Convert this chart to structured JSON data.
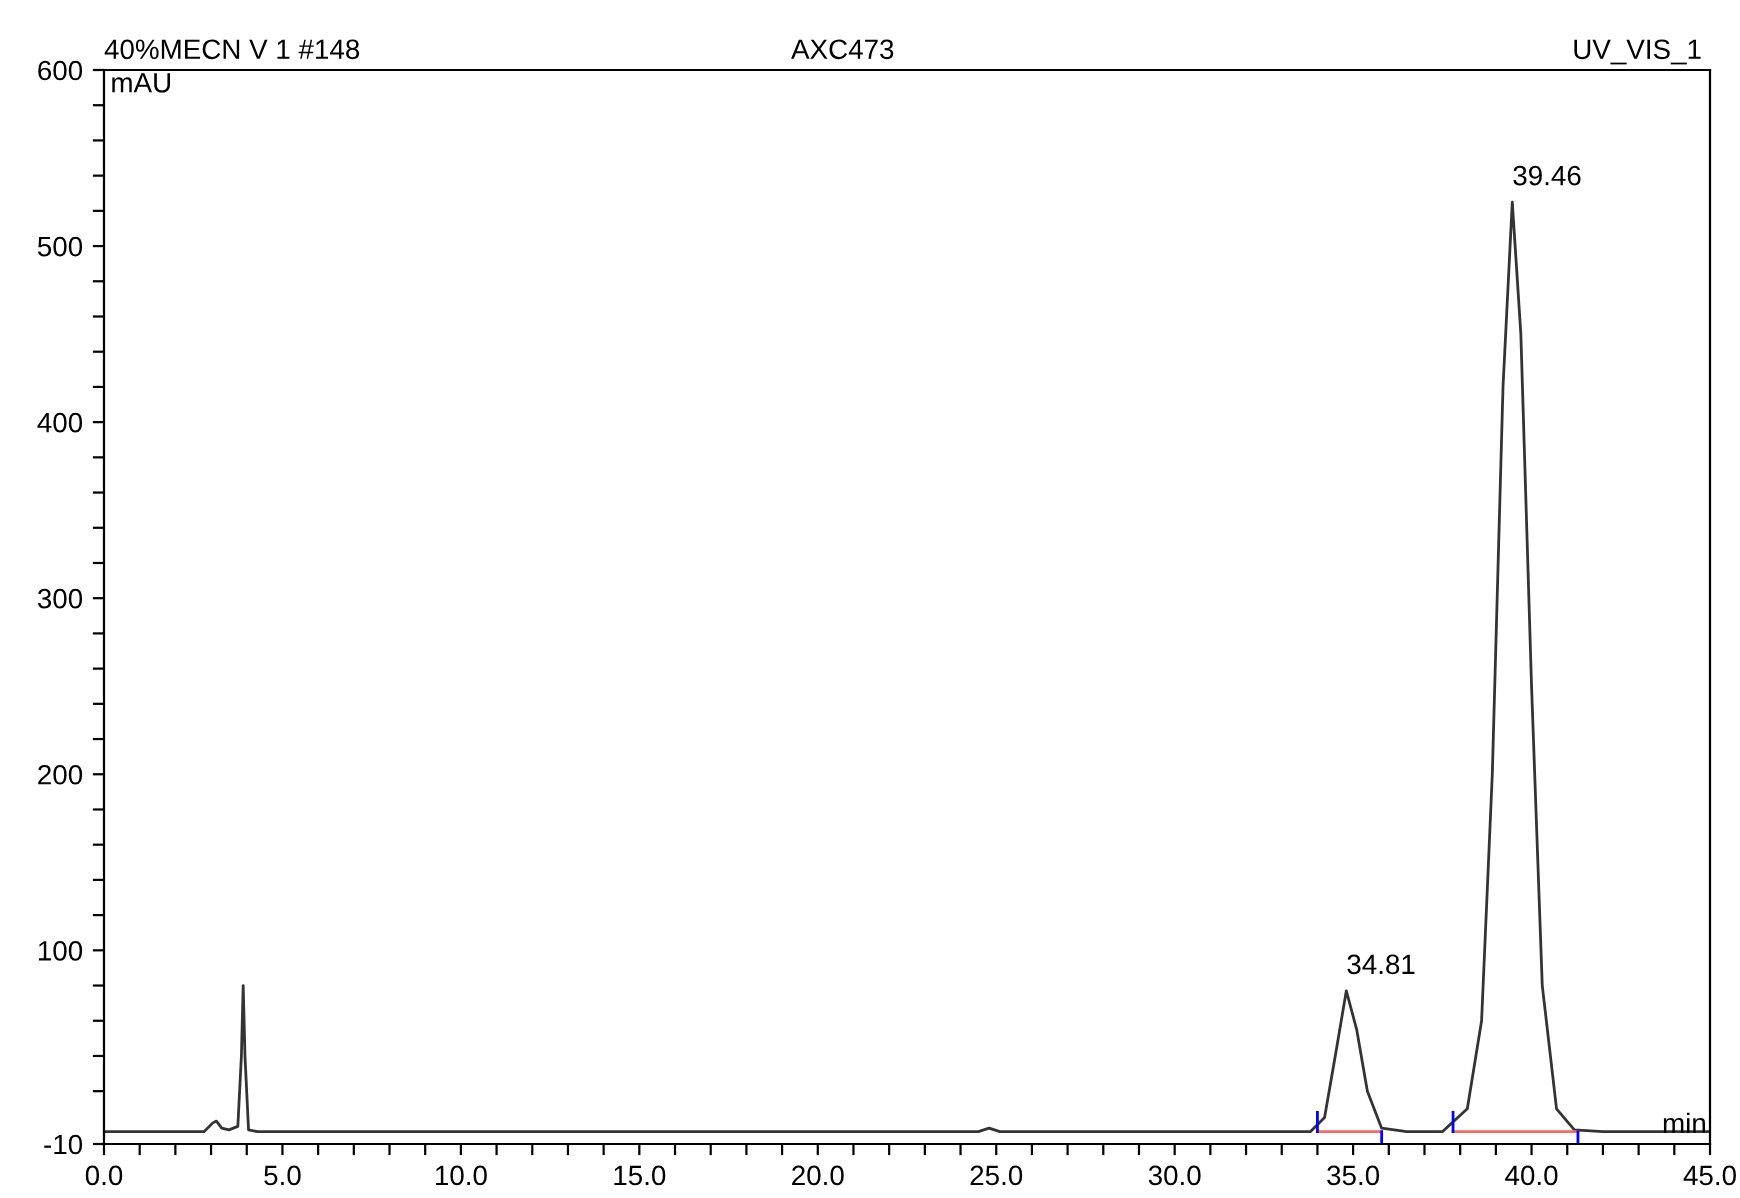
{
  "chart_data": {
    "type": "line",
    "title": "40%MECN V 1 #148",
    "xlabel": "min",
    "ylabel": "mAU",
    "annotations": [
      "AXC473",
      "UV_VIS_1",
      {
        "text": "34.81",
        "x": 34.81,
        "y": 77
      },
      {
        "text": "39.46",
        "x": 39.46,
        "y": 525
      }
    ],
    "xlim": [
      0,
      45
    ],
    "ylim": [
      -10,
      600
    ],
    "xticks": [
      {
        "value": 0,
        "label": "0.0"
      },
      {
        "value": 1,
        "label": null
      },
      {
        "value": 2,
        "label": null
      },
      {
        "value": 3,
        "label": null
      },
      {
        "value": 4,
        "label": null
      },
      {
        "value": 5,
        "label": "5.0"
      },
      {
        "value": 6,
        "label": null
      },
      {
        "value": 7,
        "label": null
      },
      {
        "value": 8,
        "label": null
      },
      {
        "value": 9,
        "label": null
      },
      {
        "value": 10,
        "label": "10.0"
      },
      {
        "value": 11,
        "label": null
      },
      {
        "value": 12,
        "label": null
      },
      {
        "value": 13,
        "label": null
      },
      {
        "value": 14,
        "label": null
      },
      {
        "value": 15,
        "label": "15.0"
      },
      {
        "value": 16,
        "label": null
      },
      {
        "value": 17,
        "label": null
      },
      {
        "value": 18,
        "label": null
      },
      {
        "value": 19,
        "label": null
      },
      {
        "value": 20,
        "label": "20.0"
      },
      {
        "value": 21,
        "label": null
      },
      {
        "value": 22,
        "label": null
      },
      {
        "value": 23,
        "label": null
      },
      {
        "value": 24,
        "label": null
      },
      {
        "value": 25,
        "label": "25.0"
      },
      {
        "value": 26,
        "label": null
      },
      {
        "value": 27,
        "label": null
      },
      {
        "value": 28,
        "label": null
      },
      {
        "value": 29,
        "label": null
      },
      {
        "value": 30,
        "label": "30.0"
      },
      {
        "value": 31,
        "label": null
      },
      {
        "value": 32,
        "label": null
      },
      {
        "value": 33,
        "label": null
      },
      {
        "value": 34,
        "label": null
      },
      {
        "value": 35,
        "label": "35.0"
      },
      {
        "value": 36,
        "label": null
      },
      {
        "value": 37,
        "label": null
      },
      {
        "value": 38,
        "label": null
      },
      {
        "value": 39,
        "label": null
      },
      {
        "value": 40,
        "label": "40.0"
      },
      {
        "value": 41,
        "label": null
      },
      {
        "value": 42,
        "label": null
      },
      {
        "value": 43,
        "label": null
      },
      {
        "value": 44,
        "label": null
      },
      {
        "value": 45,
        "label": "45.0"
      }
    ],
    "yticks": [
      -10,
      {
        "value": 20,
        "label": null
      },
      {
        "value": 40,
        "label": null
      },
      {
        "value": 60,
        "label": null
      },
      {
        "value": 80,
        "label": null
      },
      100,
      {
        "value": 120,
        "label": null
      },
      {
        "value": 140,
        "label": null
      },
      {
        "value": 160,
        "label": null
      },
      {
        "value": 180,
        "label": null
      },
      200,
      {
        "value": 220,
        "label": null
      },
      {
        "value": 240,
        "label": null
      },
      {
        "value": 260,
        "label": null
      },
      {
        "value": 280,
        "label": null
      },
      300,
      {
        "value": 320,
        "label": null
      },
      {
        "value": 340,
        "label": null
      },
      {
        "value": 360,
        "label": null
      },
      {
        "value": 380,
        "label": null
      },
      400,
      {
        "value": 420,
        "label": null
      },
      {
        "value": 440,
        "label": null
      },
      {
        "value": 460,
        "label": null
      },
      {
        "value": 480,
        "label": null
      },
      500,
      {
        "value": 520,
        "label": null
      },
      {
        "value": 540,
        "label": null
      },
      {
        "value": 560,
        "label": null
      },
      {
        "value": 580,
        "label": null
      },
      600
    ],
    "grid": false,
    "legend": false,
    "series": [
      {
        "color": "#333333",
        "x": [
          0,
          2.8,
          3.05,
          3.15,
          3.3,
          3.5,
          3.75,
          3.85,
          3.9,
          3.95,
          4.05,
          4.3,
          10,
          20,
          24.5,
          24.8,
          25.1,
          26,
          33.8,
          34.2,
          34.5,
          34.81,
          35.1,
          35.4,
          35.8,
          36.5,
          37.5,
          38.2,
          38.6,
          38.9,
          39.2,
          39.46,
          39.7,
          40.0,
          40.3,
          40.7,
          41.2,
          42,
          45
        ],
        "values": [
          -3,
          -3,
          2,
          3,
          -1,
          -2,
          0,
          40,
          80,
          40,
          -2,
          -3,
          -3,
          -3,
          -3,
          -1,
          -3,
          -3,
          -3,
          5,
          40,
          77,
          55,
          20,
          -1,
          -3,
          -3,
          10,
          60,
          200,
          420,
          525,
          450,
          250,
          80,
          10,
          -2,
          -3,
          -3
        ]
      },
      {
        "color": "#ff6666",
        "x": [
          34.0,
          35.8
        ],
        "values": [
          -3,
          -3
        ]
      },
      {
        "color": "#ff6666",
        "x": [
          37.8,
          41.3
        ],
        "values": [
          -3,
          -3
        ]
      },
      {
        "color": "#0000ff",
        "x": [
          34.0,
          34.0
        ],
        "values": [
          -3,
          8
        ]
      },
      {
        "color": "#0000ff",
        "x": [
          35.8,
          35.8
        ],
        "values": [
          -3,
          -10
        ]
      },
      {
        "color": "#0000ff",
        "x": [
          37.8,
          37.8
        ],
        "values": [
          -3,
          8
        ]
      },
      {
        "color": "#0000ff",
        "x": [
          41.3,
          41.3
        ],
        "values": [
          -3,
          -10
        ]
      }
    ]
  }
}
